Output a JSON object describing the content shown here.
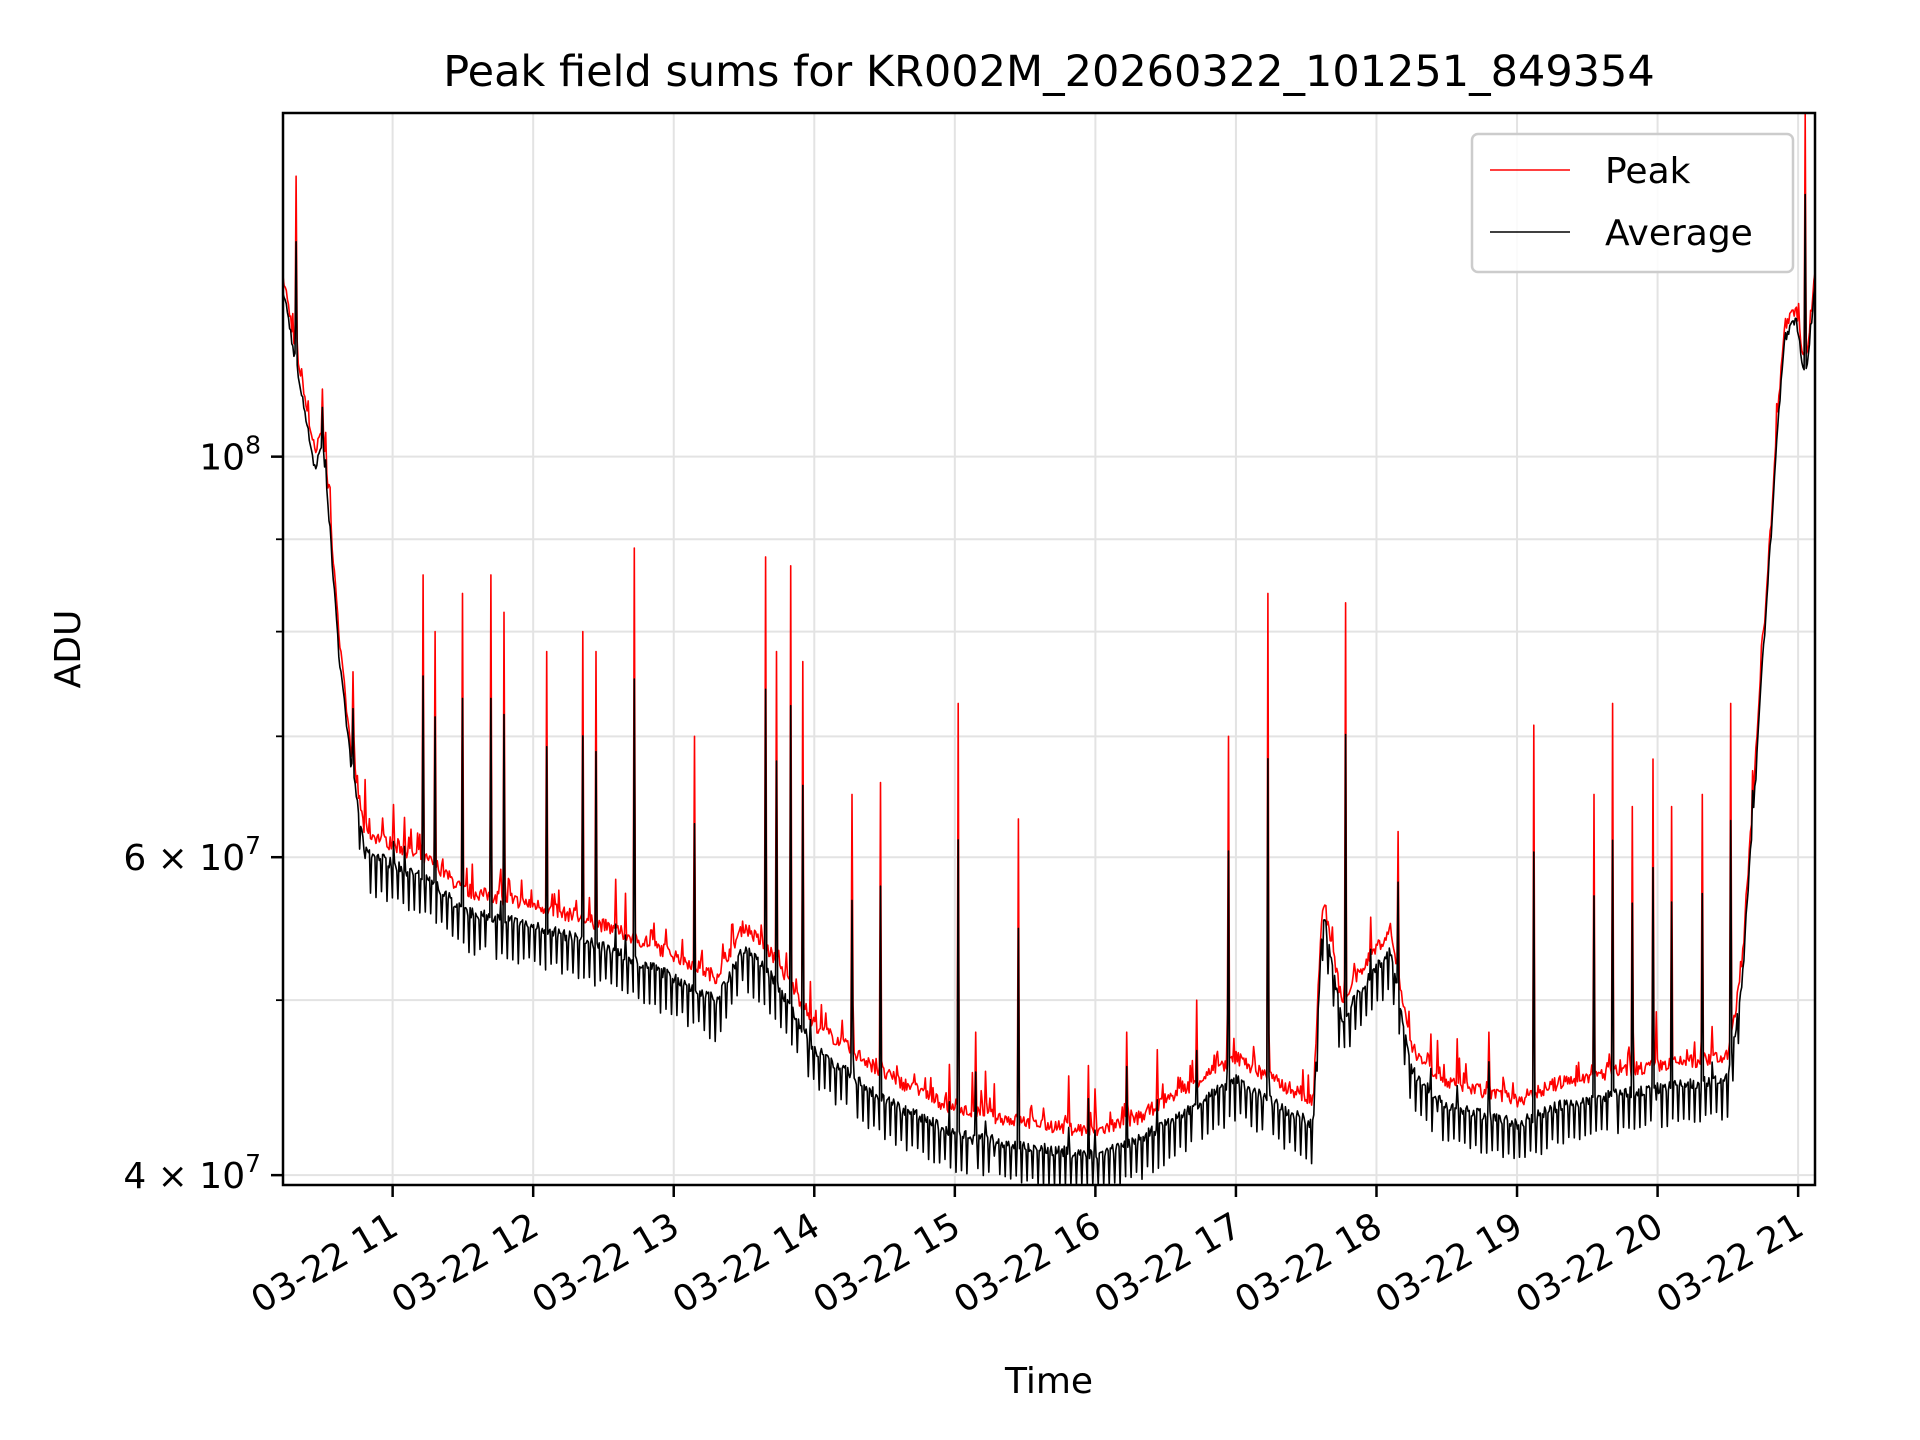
{
  "chart_data": {
    "type": "line",
    "title": "Peak field sums for KR002M_20260322_101251_849354",
    "xlabel": "Time",
    "ylabel": "ADU",
    "yscale": "log",
    "ylim": [
      39500000,
      155000000
    ],
    "xlim": [
      10.22,
      21.12
    ],
    "grid": true,
    "legend_position": "top-right",
    "x_ticks": [
      {
        "value": 11,
        "label": "03-22 11"
      },
      {
        "value": 12,
        "label": "03-22 12"
      },
      {
        "value": 13,
        "label": "03-22 13"
      },
      {
        "value": 14,
        "label": "03-22 14"
      },
      {
        "value": 15,
        "label": "03-22 15"
      },
      {
        "value": 16,
        "label": "03-22 16"
      },
      {
        "value": 17,
        "label": "03-22 17"
      },
      {
        "value": 18,
        "label": "03-22 18"
      },
      {
        "value": 19,
        "label": "03-22 19"
      },
      {
        "value": 20,
        "label": "03-22 20"
      },
      {
        "value": 21,
        "label": "03-22 21"
      }
    ],
    "y_major_ticks": [
      {
        "value": 40000000,
        "label_base": "4 × 10",
        "label_exp": "7"
      },
      {
        "value": 60000000,
        "label_base": "6 × 10",
        "label_exp": "7"
      },
      {
        "value": 100000000,
        "label_base": "10",
        "label_exp": "8"
      }
    ],
    "y_minor_ticks": [
      50000000,
      70000000,
      80000000,
      90000000
    ],
    "series": [
      {
        "name": "Peak",
        "color": "#ff0000",
        "baseline": [
          [
            10.22,
            126000000
          ],
          [
            10.3,
            116000000
          ],
          [
            10.45,
            100000000
          ],
          [
            10.5,
            104000000
          ],
          [
            10.55,
            94000000
          ],
          [
            10.62,
            79000000
          ],
          [
            10.7,
            69000000
          ],
          [
            10.8,
            62000000
          ],
          [
            11.0,
            61000000
          ],
          [
            11.3,
            59500000
          ],
          [
            11.5,
            57500000
          ],
          [
            12.0,
            56500000
          ],
          [
            12.5,
            55000000
          ],
          [
            13.0,
            53000000
          ],
          [
            13.3,
            51500000
          ],
          [
            13.5,
            55000000
          ],
          [
            13.7,
            53000000
          ],
          [
            14.0,
            48500000
          ],
          [
            14.5,
            45500000
          ],
          [
            15.0,
            43500000
          ],
          [
            15.5,
            42800000
          ],
          [
            16.0,
            42300000
          ],
          [
            16.3,
            43000000
          ],
          [
            16.6,
            44500000
          ],
          [
            17.0,
            46500000
          ],
          [
            17.3,
            45000000
          ],
          [
            17.55,
            44000000
          ],
          [
            17.62,
            57000000
          ],
          [
            17.75,
            50000000
          ],
          [
            18.0,
            53500000
          ],
          [
            18.1,
            54500000
          ],
          [
            18.25,
            47000000
          ],
          [
            18.5,
            45000000
          ],
          [
            19.0,
            44000000
          ],
          [
            19.3,
            45000000
          ],
          [
            19.6,
            45500000
          ],
          [
            20.0,
            46000000
          ],
          [
            20.5,
            46500000
          ],
          [
            20.6,
            52000000
          ],
          [
            20.7,
            68000000
          ],
          [
            20.8,
            90000000
          ],
          [
            20.9,
            118000000
          ],
          [
            20.98,
            121000000
          ],
          [
            21.05,
            112000000
          ],
          [
            21.12,
            126000000
          ]
        ],
        "spikes": [
          [
            10.31,
            143000000
          ],
          [
            10.5,
            109000000
          ],
          [
            10.72,
            76000000
          ],
          [
            11.22,
            86000000
          ],
          [
            11.3,
            80000000
          ],
          [
            11.5,
            84000000
          ],
          [
            11.7,
            86000000
          ],
          [
            11.79,
            82000000
          ],
          [
            12.1,
            78000000
          ],
          [
            12.35,
            80000000
          ],
          [
            12.45,
            78000000
          ],
          [
            12.72,
            89000000
          ],
          [
            13.15,
            70000000
          ],
          [
            13.65,
            88000000
          ],
          [
            13.73,
            78000000
          ],
          [
            13.83,
            87000000
          ],
          [
            13.92,
            77000000
          ],
          [
            14.27,
            65000000
          ],
          [
            14.47,
            66000000
          ],
          [
            15.02,
            73000000
          ],
          [
            15.15,
            48000000
          ],
          [
            15.45,
            63000000
          ],
          [
            15.95,
            46000000
          ],
          [
            16.22,
            48000000
          ],
          [
            16.72,
            50000000
          ],
          [
            16.95,
            70000000
          ],
          [
            17.23,
            84000000
          ],
          [
            17.78,
            83000000
          ],
          [
            18.15,
            62000000
          ],
          [
            18.8,
            48000000
          ],
          [
            19.12,
            71000000
          ],
          [
            19.55,
            65000000
          ],
          [
            19.68,
            73000000
          ],
          [
            19.82,
            64000000
          ],
          [
            19.97,
            68000000
          ],
          [
            20.1,
            64000000
          ],
          [
            20.32,
            65000000
          ],
          [
            20.52,
            73000000
          ],
          [
            20.68,
            67000000
          ],
          [
            21.05,
            158000000
          ]
        ]
      },
      {
        "name": "Average",
        "color": "#000000",
        "baseline": [
          [
            10.22,
            124000000
          ],
          [
            10.3,
            114000000
          ],
          [
            10.45,
            98000000
          ],
          [
            10.5,
            102000000
          ],
          [
            10.55,
            92000000
          ],
          [
            10.62,
            77000000
          ],
          [
            10.7,
            68000000
          ],
          [
            10.8,
            60500000
          ],
          [
            11.0,
            59500000
          ],
          [
            11.3,
            58000000
          ],
          [
            11.5,
            56000000
          ],
          [
            12.0,
            55000000
          ],
          [
            12.5,
            53500000
          ],
          [
            13.0,
            51500000
          ],
          [
            13.3,
            50000000
          ],
          [
            13.5,
            53500000
          ],
          [
            13.7,
            51500000
          ],
          [
            14.0,
            47000000
          ],
          [
            14.5,
            44000000
          ],
          [
            15.0,
            42200000
          ],
          [
            15.5,
            41500000
          ],
          [
            16.0,
            41000000
          ],
          [
            16.3,
            41800000
          ],
          [
            16.6,
            43200000
          ],
          [
            17.0,
            45200000
          ],
          [
            17.3,
            43700000
          ],
          [
            17.55,
            42700000
          ],
          [
            17.62,
            56000000
          ],
          [
            17.75,
            48700000
          ],
          [
            18.0,
            52200000
          ],
          [
            18.1,
            53200000
          ],
          [
            18.25,
            45700000
          ],
          [
            18.5,
            43700000
          ],
          [
            19.0,
            42700000
          ],
          [
            19.3,
            43700000
          ],
          [
            19.6,
            44200000
          ],
          [
            20.0,
            44700000
          ],
          [
            20.5,
            45200000
          ],
          [
            20.6,
            50700000
          ],
          [
            20.7,
            66700000
          ],
          [
            20.8,
            88500000
          ],
          [
            20.9,
            116000000
          ],
          [
            20.98,
            119500000
          ],
          [
            21.05,
            110000000
          ],
          [
            21.12,
            124000000
          ]
        ]
      }
    ]
  }
}
